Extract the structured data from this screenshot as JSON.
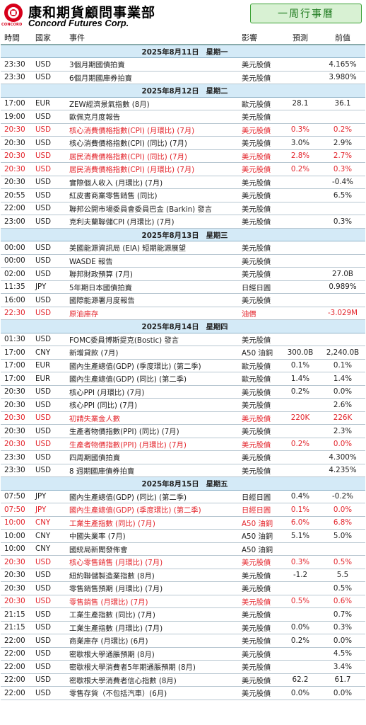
{
  "brand": {
    "name_zh": "康和期貨顧問事業部",
    "name_en": "Concord Futures Corp.",
    "logo_sub": "CONCORD"
  },
  "week_button": "一周行事曆",
  "columns": {
    "time": "時間",
    "country": "國家",
    "event": "事件",
    "impact": "影響",
    "forecast": "預測",
    "previous": "前值"
  },
  "days": [
    {
      "date": "2025年8月11日",
      "weekday": "星期一",
      "rows": [
        {
          "time": "23:30",
          "country": "USD",
          "event": "3個月期國債拍賣",
          "impact": "美元股債",
          "forecast": "",
          "previous": "4.165%",
          "hi": false
        },
        {
          "time": "23:30",
          "country": "USD",
          "event": "6個月期國庫券拍賣",
          "impact": "美元股債",
          "forecast": "",
          "previous": "3.980%",
          "hi": false
        }
      ]
    },
    {
      "date": "2025年8月12日",
      "weekday": "星期二",
      "rows": [
        {
          "time": "17:00",
          "country": "EUR",
          "event": "ZEW經濟景氣指數 (8月)",
          "impact": "歐元股債",
          "forecast": "28.1",
          "previous": "36.1",
          "hi": false
        },
        {
          "time": "19:00",
          "country": "USD",
          "event": "歐佩克月度報告",
          "impact": "美元股債",
          "forecast": "",
          "previous": "",
          "hi": false
        },
        {
          "time": "20:30",
          "country": "USD",
          "event": "核心消費價格指數(CPI) (月環比) (7月)",
          "impact": "美元股債",
          "forecast": "0.3%",
          "previous": "0.2%",
          "hi": true
        },
        {
          "time": "20:30",
          "country": "USD",
          "event": "核心消費價格指數(CPI) (同比) (7月)",
          "impact": "美元股債",
          "forecast": "3.0%",
          "previous": "2.9%",
          "hi": false
        },
        {
          "time": "20:30",
          "country": "USD",
          "event": "居民消費價格指數(CPI) (同比) (7月)",
          "impact": "美元股債",
          "forecast": "2.8%",
          "previous": "2.7%",
          "hi": true
        },
        {
          "time": "20:30",
          "country": "USD",
          "event": "居民消費價格指數(CPI) (月環比) (7月)",
          "impact": "美元股債",
          "forecast": "0.2%",
          "previous": "0.3%",
          "hi": true
        },
        {
          "time": "20:30",
          "country": "USD",
          "event": "實際個人收入 (月環比) (7月)",
          "impact": "美元股債",
          "forecast": "",
          "previous": "-0.4%",
          "hi": false
        },
        {
          "time": "20:55",
          "country": "USD",
          "event": "紅皮書商業零售銷售 (同比)",
          "impact": "美元股債",
          "forecast": "",
          "previous": "6.5%",
          "hi": false
        },
        {
          "time": "22:00",
          "country": "USD",
          "event": "聯邦公開市場委員會委員巴金 (Barkin) 發言",
          "impact": "美元股債",
          "forecast": "",
          "previous": "",
          "hi": false
        },
        {
          "time": "23:00",
          "country": "USD",
          "event": "克利夫蘭聯儲CPI (月環比) (7月)",
          "impact": "美元股債",
          "forecast": "",
          "previous": "0.3%",
          "hi": false
        }
      ]
    },
    {
      "date": "2025年8月13日",
      "weekday": "星期三",
      "rows": [
        {
          "time": "00:00",
          "country": "USD",
          "event": "美國能源資訊局 (EIA) 短期能源展望",
          "impact": "美元股債",
          "forecast": "",
          "previous": "",
          "hi": false
        },
        {
          "time": "00:00",
          "country": "USD",
          "event": "WASDE 報告",
          "impact": "美元股債",
          "forecast": "",
          "previous": "",
          "hi": false
        },
        {
          "time": "02:00",
          "country": "USD",
          "event": "聯邦財政預算 (7月)",
          "impact": "美元股債",
          "forecast": "",
          "previous": "27.0B",
          "hi": false
        },
        {
          "time": "11:35",
          "country": "JPY",
          "event": "5年期日本國債拍賣",
          "impact": "日經日圓",
          "forecast": "",
          "previous": "0.989%",
          "hi": false
        },
        {
          "time": "16:00",
          "country": "USD",
          "event": "國際能源署月度報告",
          "impact": "美元股債",
          "forecast": "",
          "previous": "",
          "hi": false
        },
        {
          "time": "22:30",
          "country": "USD",
          "event": "原油庫存",
          "impact": "油價",
          "forecast": "",
          "previous": "-3.029M",
          "hi": true
        }
      ]
    },
    {
      "date": "2025年8月14日",
      "weekday": "星期四",
      "rows": [
        {
          "time": "01:30",
          "country": "USD",
          "event": "FOMC委員博斯提克(Bostic) 發言",
          "impact": "美元股債",
          "forecast": "",
          "previous": "",
          "hi": false
        },
        {
          "time": "17:00",
          "country": "CNY",
          "event": "新增貸款 (7月)",
          "impact": "A50 油銅",
          "forecast": "300.0B",
          "previous": "2,240.0B",
          "hi": false
        },
        {
          "time": "17:00",
          "country": "EUR",
          "event": "國內生產總值(GDP) (季度環比) (第二季)",
          "impact": "歐元股債",
          "forecast": "0.1%",
          "previous": "0.1%",
          "hi": false
        },
        {
          "time": "17:00",
          "country": "EUR",
          "event": "國內生產總值(GDP) (同比) (第二季)",
          "impact": "歐元股債",
          "forecast": "1.4%",
          "previous": "1.4%",
          "hi": false
        },
        {
          "time": "20:30",
          "country": "USD",
          "event": "核心PPI (月環比) (7月)",
          "impact": "美元股債",
          "forecast": "0.2%",
          "previous": "0.0%",
          "hi": false
        },
        {
          "time": "20:30",
          "country": "USD",
          "event": "核心PPI (同比) (7月)",
          "impact": "美元股債",
          "forecast": "",
          "previous": "2.6%",
          "hi": false
        },
        {
          "time": "20:30",
          "country": "USD",
          "event": "初請失業金人數",
          "impact": "美元股債",
          "forecast": "220K",
          "previous": "226K",
          "hi": true
        },
        {
          "time": "20:30",
          "country": "USD",
          "event": "生產者物價指數(PPI) (同比) (7月)",
          "impact": "美元股債",
          "forecast": "",
          "previous": "2.3%",
          "hi": false
        },
        {
          "time": "20:30",
          "country": "USD",
          "event": "生產者物價指數(PPI) (月環比) (7月)",
          "impact": "美元股債",
          "forecast": "0.2%",
          "previous": "0.0%",
          "hi": true
        },
        {
          "time": "23:30",
          "country": "USD",
          "event": "四周期國債拍賣",
          "impact": "美元股債",
          "forecast": "",
          "previous": "4.300%",
          "hi": false
        },
        {
          "time": "23:30",
          "country": "USD",
          "event": "8 週期國庫債券拍賣",
          "impact": "美元股債",
          "forecast": "",
          "previous": "4.235%",
          "hi": false
        }
      ]
    },
    {
      "date": "2025年8月15日",
      "weekday": "星期五",
      "rows": [
        {
          "time": "07:50",
          "country": "JPY",
          "event": "國內生產總值(GDP) (同比) (第二季)",
          "impact": "日經日圓",
          "forecast": "0.4%",
          "previous": "-0.2%",
          "hi": false
        },
        {
          "time": "07:50",
          "country": "JPY",
          "event": "國內生產總值(GDP) (季度環比) (第二季)",
          "impact": "日經日圓",
          "forecast": "0.1%",
          "previous": "0.0%",
          "hi": true
        },
        {
          "time": "10:00",
          "country": "CNY",
          "event": "工業生產指數 (同比) (7月)",
          "impact": "A50 油銅",
          "forecast": "6.0%",
          "previous": "6.8%",
          "hi": true
        },
        {
          "time": "10:00",
          "country": "CNY",
          "event": "中國失業率 (7月)",
          "impact": "A50 油銅",
          "forecast": "5.1%",
          "previous": "5.0%",
          "hi": false
        },
        {
          "time": "10:00",
          "country": "CNY",
          "event": "國統局新聞發佈會",
          "impact": "A50 油銅",
          "forecast": "",
          "previous": "",
          "hi": false
        },
        {
          "time": "20:30",
          "country": "USD",
          "event": "核心零售銷售 (月環比) (7月)",
          "impact": "美元股債",
          "forecast": "0.3%",
          "previous": "0.5%",
          "hi": true
        },
        {
          "time": "20:30",
          "country": "USD",
          "event": "紐約聯儲製造業指數 (8月)",
          "impact": "美元股債",
          "forecast": "-1.2",
          "previous": "5.5",
          "hi": false
        },
        {
          "time": "20:30",
          "country": "USD",
          "event": "零售銷售預期 (月環比) (7月)",
          "impact": "美元股債",
          "forecast": "",
          "previous": "0.5%",
          "hi": false
        },
        {
          "time": "20:30",
          "country": "USD",
          "event": "零售銷售 (月環比) (7月)",
          "impact": "美元股債",
          "forecast": "0.5%",
          "previous": "0.6%",
          "hi": true
        },
        {
          "time": "21:15",
          "country": "USD",
          "event": "工業生產指數 (同比) (7月)",
          "impact": "美元股債",
          "forecast": "",
          "previous": "0.7%",
          "hi": false
        },
        {
          "time": "21:15",
          "country": "USD",
          "event": "工業生產指數 (月環比) (7月)",
          "impact": "美元股債",
          "forecast": "0.0%",
          "previous": "0.3%",
          "hi": false
        },
        {
          "time": "22:00",
          "country": "USD",
          "event": "商業庫存 (月環比) (6月)",
          "impact": "美元股債",
          "forecast": "0.2%",
          "previous": "0.0%",
          "hi": false
        },
        {
          "time": "22:00",
          "country": "USD",
          "event": "密歇根大學通脹預期 (8月)",
          "impact": "美元股債",
          "forecast": "",
          "previous": "4.5%",
          "hi": false
        },
        {
          "time": "22:00",
          "country": "USD",
          "event": "密歇根大學消費者5年期通脹預期 (8月)",
          "impact": "美元股債",
          "forecast": "",
          "previous": "3.4%",
          "hi": false
        },
        {
          "time": "22:00",
          "country": "USD",
          "event": "密歇根大學消費者信心指數 (8月)",
          "impact": "美元股債",
          "forecast": "62.2",
          "previous": "61.7",
          "hi": false
        },
        {
          "time": "22:00",
          "country": "USD",
          "event": "零售存貨（不包括汽車）(6月)",
          "impact": "美元股債",
          "forecast": "0.0%",
          "previous": "0.0%",
          "hi": false
        }
      ]
    }
  ]
}
